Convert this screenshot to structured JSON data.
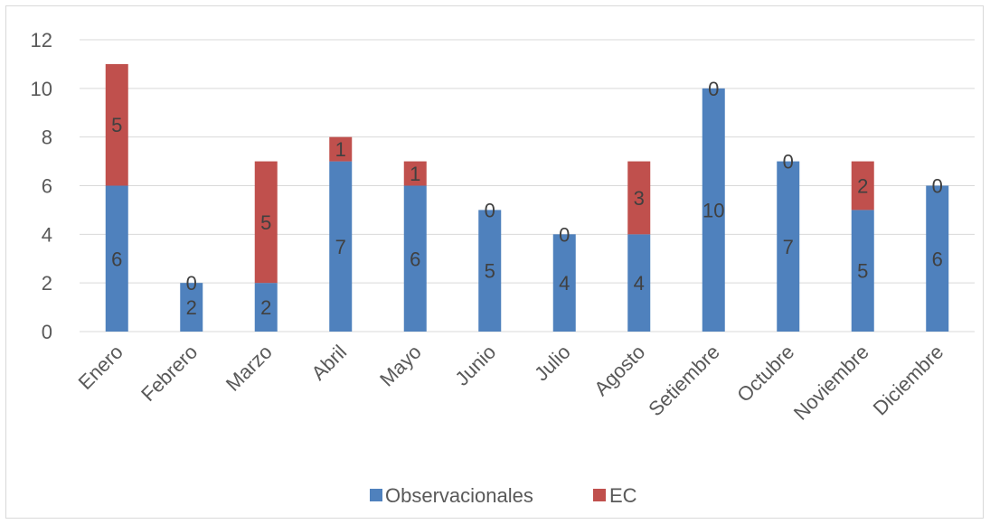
{
  "chart_data": {
    "type": "bar",
    "stacked": true,
    "categories": [
      "Enero",
      "Febrero",
      "Marzo",
      "Abril",
      "Mayo",
      "Junio",
      "Julio",
      "Agosto",
      "Setiembre",
      "Octubre",
      "Noviembre",
      "Diciembre"
    ],
    "series": [
      {
        "name": "Observacionales",
        "color": "#4f81bd",
        "values": [
          6,
          2,
          2,
          7,
          6,
          5,
          4,
          4,
          10,
          7,
          5,
          6
        ]
      },
      {
        "name": "EC",
        "color": "#c0504d",
        "values": [
          5,
          0,
          5,
          1,
          1,
          0,
          0,
          3,
          0,
          0,
          2,
          0
        ]
      }
    ],
    "yticks": [
      "0",
      "2",
      "4",
      "6",
      "8",
      "10",
      "12"
    ],
    "ylim": [
      0,
      12
    ],
    "grid": true,
    "legend_position": "bottom"
  }
}
